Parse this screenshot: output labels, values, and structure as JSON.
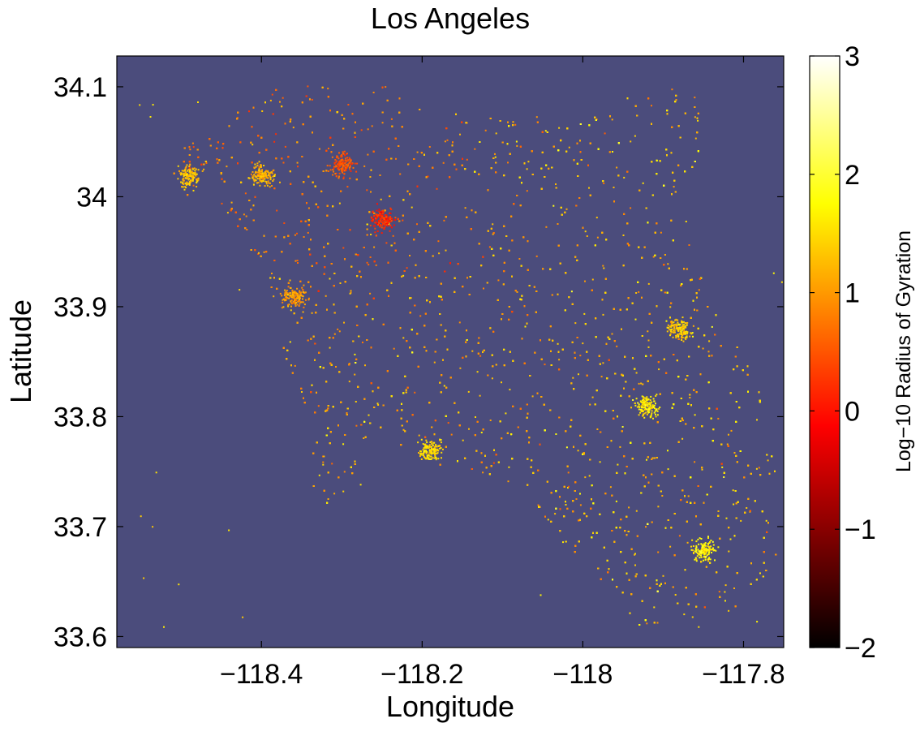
{
  "chart_data": {
    "type": "heatmap",
    "title": "Los Angeles",
    "xlabel": "Longitude",
    "ylabel": "Latitude",
    "xlim": [
      -118.58,
      -117.75
    ],
    "ylim": [
      33.59,
      34.128
    ],
    "x_ticks": [
      -118.4,
      -118.2,
      -118.0,
      -117.8
    ],
    "x_tick_labels": [
      "−118.4",
      "−118.2",
      "−118",
      "−117.8"
    ],
    "y_ticks": [
      34.1,
      34.0,
      33.9,
      33.8,
      33.7,
      33.6
    ],
    "y_tick_labels": [
      "34.1",
      "34",
      "33.9",
      "33.8",
      "33.7",
      "33.6"
    ],
    "grid": false,
    "background_color": "#4b4c7c",
    "colormap": "hot",
    "colorbar": {
      "label": "Log−10 Radius of Gyration",
      "range": [
        -2,
        3
      ],
      "ticks": [
        3,
        2,
        1,
        0,
        -1,
        -2
      ],
      "tick_labels": [
        "3",
        "2",
        "1",
        "0",
        "−1",
        "−2"
      ]
    },
    "region_outline": [
      [
        -118.52,
        34.03
      ],
      [
        -118.48,
        34.06
      ],
      [
        -118.43,
        34.08
      ],
      [
        -118.38,
        34.11
      ],
      [
        -118.31,
        34.11
      ],
      [
        -118.24,
        34.1
      ],
      [
        -118.18,
        34.08
      ],
      [
        -118.1,
        34.07
      ],
      [
        -118.02,
        34.08
      ],
      [
        -117.95,
        34.09
      ],
      [
        -117.88,
        34.1
      ],
      [
        -117.84,
        34.1
      ],
      [
        -117.86,
        34.03
      ],
      [
        -117.9,
        33.99
      ],
      [
        -117.86,
        33.95
      ],
      [
        -117.83,
        33.89
      ],
      [
        -117.78,
        33.84
      ],
      [
        -117.76,
        33.75
      ],
      [
        -117.76,
        33.66
      ],
      [
        -117.8,
        33.63
      ],
      [
        -117.86,
        33.61
      ],
      [
        -117.9,
        33.6
      ],
      [
        -117.96,
        33.62
      ],
      [
        -118.0,
        33.66
      ],
      [
        -118.05,
        33.71
      ],
      [
        -118.1,
        33.74
      ],
      [
        -118.16,
        33.75
      ],
      [
        -118.22,
        33.77
      ],
      [
        -118.26,
        33.79
      ],
      [
        -118.29,
        33.74
      ],
      [
        -118.31,
        33.71
      ],
      [
        -118.34,
        33.72
      ],
      [
        -118.34,
        33.8
      ],
      [
        -118.37,
        33.85
      ],
      [
        -118.39,
        33.92
      ],
      [
        -118.42,
        33.96
      ],
      [
        -118.47,
        33.99
      ],
      [
        -118.51,
        34.01
      ]
    ],
    "hotspots": [
      {
        "lon": -118.25,
        "lat": 33.98,
        "value": 0.2
      },
      {
        "lon": -118.3,
        "lat": 34.03,
        "value": 0.5
      },
      {
        "lon": -118.4,
        "lat": 34.02,
        "value": 1.2
      },
      {
        "lon": -118.19,
        "lat": 33.77,
        "value": 1.5
      },
      {
        "lon": -117.92,
        "lat": 33.81,
        "value": 1.6
      },
      {
        "lon": -117.88,
        "lat": 33.88,
        "value": 1.4
      },
      {
        "lon": -118.36,
        "lat": 33.91,
        "value": 1.0
      },
      {
        "lon": -117.85,
        "lat": 33.68,
        "value": 1.7
      },
      {
        "lon": -118.49,
        "lat": 34.02,
        "value": 1.3
      }
    ]
  }
}
